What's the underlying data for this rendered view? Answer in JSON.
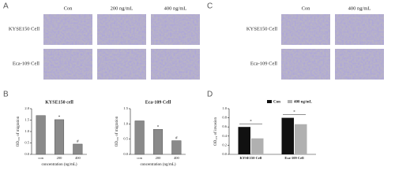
{
  "panel_a": {
    "label": "A",
    "columns": [
      "Con",
      "200 ng/mL",
      "400 ng/mL"
    ],
    "rows": [
      "KYSE150 Cell",
      "Eca-109 Cell"
    ]
  },
  "panel_c": {
    "label": "C",
    "columns": [
      "Con",
      "400 ng/mL"
    ],
    "rows": [
      "KYSE150 Cell",
      "Eca-109 Cell"
    ]
  },
  "panel_b_label": "B",
  "panel_d_label": "D",
  "chart_data": [
    {
      "type": "bar",
      "title": "KYSE150 cell",
      "x_label": "concentration (ng/mL)",
      "y_label": "OD₅₇₀ of migration",
      "categories": [
        "con",
        "200",
        "400"
      ],
      "values": [
        1.7,
        1.52,
        0.45
      ],
      "color": "#8a8a8a",
      "ylim": [
        0,
        2
      ],
      "yticks": [
        {
          "value": 0,
          "label": "0.0"
        },
        {
          "value": 0.5,
          "label": "0.5"
        },
        {
          "value": 1,
          "label": "1.0"
        },
        {
          "value": 1.5,
          "label": "1.5"
        },
        {
          "value": 2,
          "label": "2.0"
        }
      ],
      "annotations": [
        {
          "category": 1,
          "text": "*"
        },
        {
          "category": 2,
          "text": "#"
        }
      ]
    },
    {
      "type": "bar",
      "title": "Eca-109 Cell",
      "x_label": "concentration (ng/mL)",
      "y_label": "OD₅₇₀ of migration",
      "categories": [
        "con",
        "200",
        "400"
      ],
      "values": [
        1.1,
        0.82,
        0.45
      ],
      "color": "#8a8a8a",
      "ylim": [
        0,
        1.5
      ],
      "yticks": [
        {
          "value": 0,
          "label": "0.0"
        },
        {
          "value": 0.5,
          "label": "0.5"
        },
        {
          "value": 1,
          "label": "1.0"
        },
        {
          "value": 1.5,
          "label": "1.5"
        }
      ],
      "annotations": [
        {
          "category": 1,
          "text": "*"
        },
        {
          "category": 2,
          "text": "#"
        }
      ]
    },
    {
      "type": "bar",
      "y_label": "OD₅₇₀ of invasion",
      "categories": [
        "KYSE150 Cell",
        "Eca-109 Cell"
      ],
      "series": [
        {
          "name": "Con",
          "color": "#111111",
          "values": [
            0.6,
            0.8
          ]
        },
        {
          "name": "400 ng/mL",
          "color": "#b0b0b0",
          "values": [
            0.35,
            0.66
          ]
        }
      ],
      "ylim": [
        0,
        1
      ],
      "yticks": [
        {
          "value": 0,
          "label": "0.0"
        },
        {
          "value": 0.2,
          "label": "0.2"
        },
        {
          "value": 0.4,
          "label": "0.4"
        },
        {
          "value": 0.6,
          "label": "0.6"
        },
        {
          "value": 0.8,
          "label": "0.8"
        },
        {
          "value": 1,
          "label": "1.0"
        }
      ],
      "legend": "top right",
      "annotations": [
        {
          "category": 0,
          "text": "*"
        },
        {
          "category": 1,
          "text": "*"
        }
      ]
    }
  ]
}
